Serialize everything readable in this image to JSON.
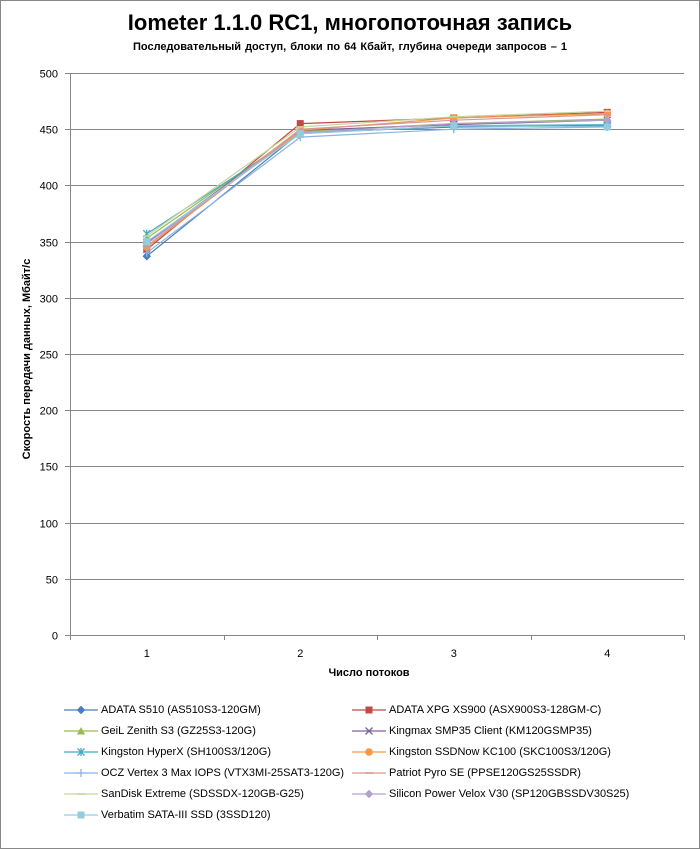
{
  "chart_data": {
    "type": "line",
    "title": "Iometer 1.1.0 RC1, многопоточная запись",
    "subtitle": "Последовательный  доступ, блоки  по 64 Кбайт,  глубина очереди запросов  – 1",
    "xlabel": "Число потоков",
    "ylabel": "Скорость передачи данных, Мбайт/с",
    "x": [
      1,
      2,
      3,
      4
    ],
    "x_tick_labels": [
      "1",
      "2",
      "3",
      "4"
    ],
    "ylim": [
      0,
      500
    ],
    "y_ticks": [
      0,
      50,
      100,
      150,
      200,
      250,
      300,
      350,
      400,
      450,
      500
    ],
    "y_tick_labels": [
      "0",
      "50",
      "100",
      "150",
      "200",
      "250",
      "300",
      "350",
      "400",
      "450",
      "500"
    ],
    "grid": "horizontal",
    "legend_position": "bottom",
    "series": [
      {
        "name": "ADATA S510 (AS510S3-120GM)",
        "values": [
          337,
          447,
          452,
          453
        ],
        "color": "#4a7ebb",
        "marker": "diamond"
      },
      {
        "name": "ADATA XPG XS900 (ASX900S3-128GM-C)",
        "values": [
          343,
          455,
          460,
          465
        ],
        "color": "#be4b48",
        "marker": "square"
      },
      {
        "name": "GeiL Zenith S3 (GZ25S3-120G)",
        "values": [
          353,
          448,
          455,
          459
        ],
        "color": "#98b954",
        "marker": "triangle"
      },
      {
        "name": "Kingmax SMP35 Client (KM120GSMP35)",
        "values": [
          349,
          449,
          454,
          458
        ],
        "color": "#7d60a0",
        "marker": "x"
      },
      {
        "name": "Kingston HyperX (SH100S3/120G)",
        "values": [
          357,
          446,
          453,
          454
        ],
        "color": "#46aac5",
        "marker": "star"
      },
      {
        "name": "Kingston SSDNow KC100 (SKC100S3/120G)",
        "values": [
          345,
          449,
          460,
          464
        ],
        "color": "#f79646",
        "marker": "circle"
      },
      {
        "name": "OCZ Vertex 3 Max IOPS (VTX3MI-25SAT3-120G)",
        "values": [
          340,
          443,
          450,
          452
        ],
        "color": "#8db3e2",
        "marker": "plus"
      },
      {
        "name": "Patriot Pyro SE (PPSE120GS25SSDR)",
        "values": [
          346,
          450,
          458,
          463
        ],
        "color": "#d99694",
        "marker": "dash"
      },
      {
        "name": "SanDisk Extreme (SDSSDX-120GB-G25)",
        "values": [
          355,
          452,
          461,
          466
        ],
        "color": "#c3d69b",
        "marker": "dash"
      },
      {
        "name": "Silicon Power Velox V30 (SP120GBSSDV30S25)",
        "values": [
          348,
          447,
          455,
          458
        ],
        "color": "#b3a2c7",
        "marker": "diamond"
      },
      {
        "name": "Verbatim SATA-III SSD (3SSD120)",
        "values": [
          350,
          446,
          453,
          452
        ],
        "color": "#93cddd",
        "marker": "square"
      }
    ]
  }
}
